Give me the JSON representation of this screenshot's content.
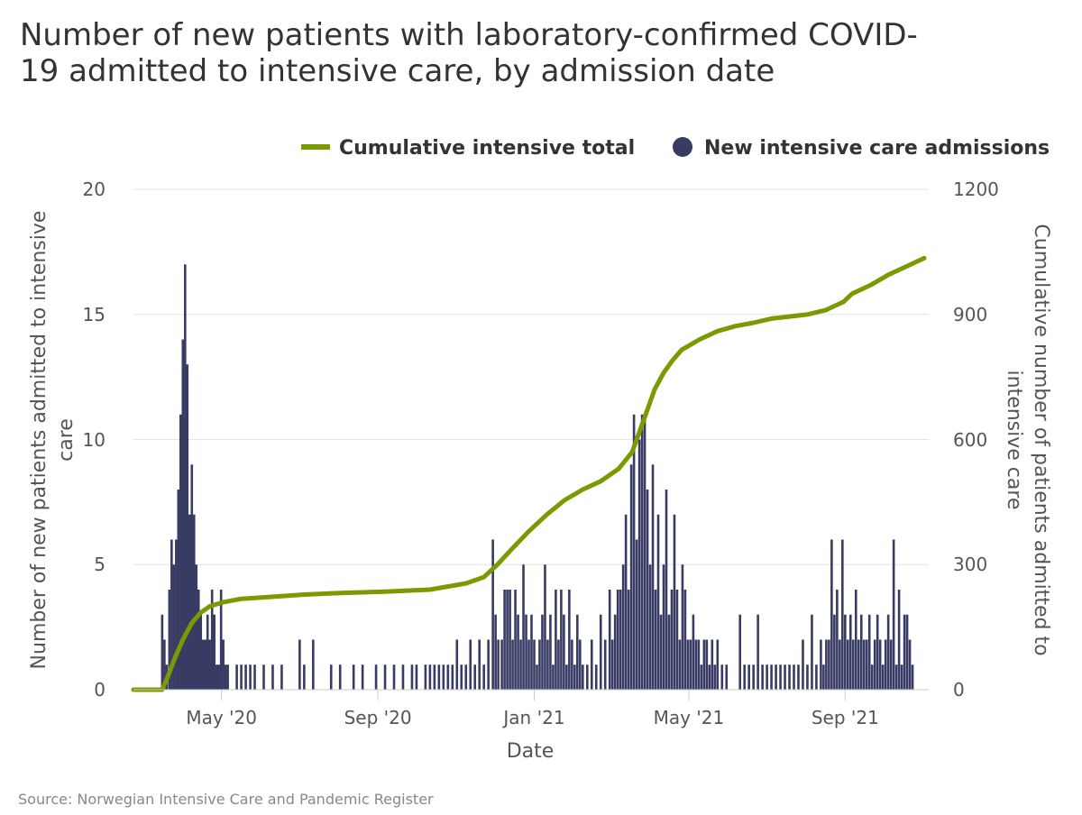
{
  "chart_data": {
    "type": "bar+line",
    "title_lines": [
      "Number of new patients with laboratory-confirmed COVID-",
      "19 admitted to intensive care, by admission date"
    ],
    "legend": [
      {
        "name": "Cumulative intensive total",
        "type": "line",
        "color": "#7a9a01"
      },
      {
        "name": "New intensive care admissions",
        "type": "bar",
        "color": "#383c64"
      }
    ],
    "xlabel": "Date",
    "ylabel_left_lines": [
      "Number of new patients admitted to intensive",
      "care"
    ],
    "ylabel_right_lines": [
      "Cumulative number of patients admitted to",
      "intensive care"
    ],
    "x_ticks": [
      {
        "label": "May '20",
        "week": 6.8
      },
      {
        "label": "Sep '20",
        "week": 24.2
      },
      {
        "label": "Jan '21",
        "week": 41.6
      },
      {
        "label": "May '21",
        "week": 58.8
      },
      {
        "label": "Sep '21",
        "week": 76.2
      }
    ],
    "ylim_left": [
      0,
      20
    ],
    "ylim_right": [
      0,
      1200
    ],
    "y_ticks_left": [
      "0",
      "5",
      "10",
      "15",
      "20"
    ],
    "y_ticks_right": [
      "0",
      "300",
      "600",
      "900",
      "1200"
    ],
    "x_range_weeks": [
      -3,
      85.5
    ],
    "cumulative_points": [
      [
        -3,
        0
      ],
      [
        0.2,
        0
      ],
      [
        0.8,
        30
      ],
      [
        1.5,
        70
      ],
      [
        2.5,
        120
      ],
      [
        3.5,
        160
      ],
      [
        4.5,
        185
      ],
      [
        5.5,
        200
      ],
      [
        7,
        210
      ],
      [
        9,
        218
      ],
      [
        12,
        222
      ],
      [
        16,
        228
      ],
      [
        20,
        232
      ],
      [
        25,
        235
      ],
      [
        30,
        240
      ],
      [
        34,
        255
      ],
      [
        36,
        270
      ],
      [
        37.5,
        300
      ],
      [
        39,
        335
      ],
      [
        41,
        380
      ],
      [
        43,
        420
      ],
      [
        45,
        455
      ],
      [
        47,
        480
      ],
      [
        49,
        500
      ],
      [
        51,
        530
      ],
      [
        52.5,
        570
      ],
      [
        54,
        660
      ],
      [
        55,
        720
      ],
      [
        56,
        760
      ],
      [
        57,
        790
      ],
      [
        58,
        815
      ],
      [
        60,
        840
      ],
      [
        62,
        860
      ],
      [
        64,
        872
      ],
      [
        66,
        880
      ],
      [
        68,
        890
      ],
      [
        70,
        895
      ],
      [
        72,
        900
      ],
      [
        74,
        910
      ],
      [
        76,
        930
      ],
      [
        77,
        950
      ],
      [
        79,
        970
      ],
      [
        81,
        995
      ],
      [
        83,
        1015
      ],
      [
        85,
        1035
      ]
    ],
    "daily_admissions": [
      {
        "x": 0.2,
        "y": 3
      },
      {
        "x": 0.45,
        "y": 2
      },
      {
        "x": 0.7,
        "y": 1
      },
      {
        "x": 1.0,
        "y": 4
      },
      {
        "x": 1.25,
        "y": 6
      },
      {
        "x": 1.5,
        "y": 5
      },
      {
        "x": 1.75,
        "y": 6
      },
      {
        "x": 2.0,
        "y": 8
      },
      {
        "x": 2.25,
        "y": 11
      },
      {
        "x": 2.5,
        "y": 14
      },
      {
        "x": 2.75,
        "y": 17
      },
      {
        "x": 3.0,
        "y": 13
      },
      {
        "x": 3.25,
        "y": 7
      },
      {
        "x": 3.5,
        "y": 9
      },
      {
        "x": 3.75,
        "y": 7
      },
      {
        "x": 4.0,
        "y": 5
      },
      {
        "x": 4.25,
        "y": 4
      },
      {
        "x": 4.5,
        "y": 3
      },
      {
        "x": 4.75,
        "y": 2
      },
      {
        "x": 5.0,
        "y": 2
      },
      {
        "x": 5.25,
        "y": 3
      },
      {
        "x": 5.5,
        "y": 2
      },
      {
        "x": 5.75,
        "y": 4
      },
      {
        "x": 6.0,
        "y": 3
      },
      {
        "x": 6.25,
        "y": 1
      },
      {
        "x": 6.5,
        "y": 1
      },
      {
        "x": 6.75,
        "y": 4
      },
      {
        "x": 7.0,
        "y": 2
      },
      {
        "x": 7.25,
        "y": 1
      },
      {
        "x": 7.5,
        "y": 1
      },
      {
        "x": 8.5,
        "y": 1
      },
      {
        "x": 9.0,
        "y": 1
      },
      {
        "x": 9.5,
        "y": 1
      },
      {
        "x": 10.0,
        "y": 1
      },
      {
        "x": 10.5,
        "y": 1
      },
      {
        "x": 11.5,
        "y": 1
      },
      {
        "x": 12.5,
        "y": 1
      },
      {
        "x": 13.5,
        "y": 1
      },
      {
        "x": 15.5,
        "y": 2
      },
      {
        "x": 16.0,
        "y": 1
      },
      {
        "x": 17.0,
        "y": 2
      },
      {
        "x": 19.0,
        "y": 1
      },
      {
        "x": 20.0,
        "y": 1
      },
      {
        "x": 21.5,
        "y": 1
      },
      {
        "x": 22.5,
        "y": 1
      },
      {
        "x": 24.0,
        "y": 1
      },
      {
        "x": 25.0,
        "y": 1
      },
      {
        "x": 26.0,
        "y": 1
      },
      {
        "x": 27.0,
        "y": 1
      },
      {
        "x": 28.0,
        "y": 1
      },
      {
        "x": 28.5,
        "y": 1
      },
      {
        "x": 29.5,
        "y": 1
      },
      {
        "x": 30.0,
        "y": 1
      },
      {
        "x": 30.5,
        "y": 1
      },
      {
        "x": 31.0,
        "y": 1
      },
      {
        "x": 31.5,
        "y": 1
      },
      {
        "x": 32.0,
        "y": 1
      },
      {
        "x": 32.5,
        "y": 1
      },
      {
        "x": 33.0,
        "y": 2
      },
      {
        "x": 33.5,
        "y": 1
      },
      {
        "x": 34.0,
        "y": 1
      },
      {
        "x": 34.5,
        "y": 2
      },
      {
        "x": 35.0,
        "y": 1
      },
      {
        "x": 35.5,
        "y": 2
      },
      {
        "x": 36.0,
        "y": 1
      },
      {
        "x": 36.5,
        "y": 2
      },
      {
        "x": 37.0,
        "y": 6
      },
      {
        "x": 37.3,
        "y": 3
      },
      {
        "x": 37.6,
        "y": 2
      },
      {
        "x": 38.0,
        "y": 2
      },
      {
        "x": 38.3,
        "y": 4
      },
      {
        "x": 38.6,
        "y": 4
      },
      {
        "x": 38.9,
        "y": 4
      },
      {
        "x": 39.2,
        "y": 2
      },
      {
        "x": 39.5,
        "y": 4
      },
      {
        "x": 39.8,
        "y": 3
      },
      {
        "x": 40.1,
        "y": 2
      },
      {
        "x": 40.4,
        "y": 5
      },
      {
        "x": 40.7,
        "y": 3
      },
      {
        "x": 41.0,
        "y": 2
      },
      {
        "x": 41.3,
        "y": 3
      },
      {
        "x": 41.6,
        "y": 2
      },
      {
        "x": 41.9,
        "y": 1
      },
      {
        "x": 42.2,
        "y": 2
      },
      {
        "x": 42.5,
        "y": 3
      },
      {
        "x": 42.8,
        "y": 5
      },
      {
        "x": 43.1,
        "y": 2
      },
      {
        "x": 43.4,
        "y": 3
      },
      {
        "x": 43.7,
        "y": 1
      },
      {
        "x": 44.0,
        "y": 4
      },
      {
        "x": 44.3,
        "y": 2
      },
      {
        "x": 44.6,
        "y": 4
      },
      {
        "x": 44.9,
        "y": 3
      },
      {
        "x": 45.2,
        "y": 1
      },
      {
        "x": 45.5,
        "y": 4
      },
      {
        "x": 45.8,
        "y": 2
      },
      {
        "x": 46.1,
        "y": 1
      },
      {
        "x": 46.4,
        "y": 3
      },
      {
        "x": 46.7,
        "y": 2
      },
      {
        "x": 47.0,
        "y": 1
      },
      {
        "x": 47.5,
        "y": 1
      },
      {
        "x": 48.0,
        "y": 2
      },
      {
        "x": 48.5,
        "y": 1
      },
      {
        "x": 49.0,
        "y": 3
      },
      {
        "x": 49.5,
        "y": 2
      },
      {
        "x": 50.0,
        "y": 4
      },
      {
        "x": 50.3,
        "y": 2
      },
      {
        "x": 50.6,
        "y": 3
      },
      {
        "x": 50.9,
        "y": 4
      },
      {
        "x": 51.2,
        "y": 4
      },
      {
        "x": 51.5,
        "y": 5
      },
      {
        "x": 51.8,
        "y": 7
      },
      {
        "x": 52.1,
        "y": 4
      },
      {
        "x": 52.4,
        "y": 9
      },
      {
        "x": 52.7,
        "y": 11
      },
      {
        "x": 53.0,
        "y": 6
      },
      {
        "x": 53.3,
        "y": 10
      },
      {
        "x": 53.6,
        "y": 11
      },
      {
        "x": 53.9,
        "y": 11
      },
      {
        "x": 54.2,
        "y": 8
      },
      {
        "x": 54.5,
        "y": 5
      },
      {
        "x": 54.8,
        "y": 9
      },
      {
        "x": 55.1,
        "y": 4
      },
      {
        "x": 55.4,
        "y": 7
      },
      {
        "x": 55.7,
        "y": 3
      },
      {
        "x": 56.0,
        "y": 5
      },
      {
        "x": 56.3,
        "y": 8
      },
      {
        "x": 56.6,
        "y": 3
      },
      {
        "x": 56.9,
        "y": 4
      },
      {
        "x": 57.2,
        "y": 7
      },
      {
        "x": 57.5,
        "y": 4
      },
      {
        "x": 57.8,
        "y": 2
      },
      {
        "x": 58.1,
        "y": 5
      },
      {
        "x": 58.4,
        "y": 4
      },
      {
        "x": 58.7,
        "y": 2
      },
      {
        "x": 59.0,
        "y": 2
      },
      {
        "x": 59.3,
        "y": 3
      },
      {
        "x": 59.6,
        "y": 2
      },
      {
        "x": 59.9,
        "y": 2
      },
      {
        "x": 60.2,
        "y": 1
      },
      {
        "x": 60.5,
        "y": 2
      },
      {
        "x": 60.8,
        "y": 2
      },
      {
        "x": 61.1,
        "y": 1
      },
      {
        "x": 61.4,
        "y": 2
      },
      {
        "x": 61.7,
        "y": 1
      },
      {
        "x": 62.0,
        "y": 2
      },
      {
        "x": 62.5,
        "y": 1
      },
      {
        "x": 63.0,
        "y": 1
      },
      {
        "x": 64.5,
        "y": 3
      },
      {
        "x": 65.0,
        "y": 1
      },
      {
        "x": 65.5,
        "y": 1
      },
      {
        "x": 66.0,
        "y": 1
      },
      {
        "x": 66.5,
        "y": 3
      },
      {
        "x": 67.0,
        "y": 1
      },
      {
        "x": 67.5,
        "y": 1
      },
      {
        "x": 68.0,
        "y": 1
      },
      {
        "x": 68.5,
        "y": 1
      },
      {
        "x": 69.0,
        "y": 1
      },
      {
        "x": 69.5,
        "y": 1
      },
      {
        "x": 70.0,
        "y": 1
      },
      {
        "x": 70.5,
        "y": 1
      },
      {
        "x": 71.0,
        "y": 1
      },
      {
        "x": 71.5,
        "y": 2
      },
      {
        "x": 72.0,
        "y": 1
      },
      {
        "x": 72.5,
        "y": 3
      },
      {
        "x": 73.0,
        "y": 1
      },
      {
        "x": 73.5,
        "y": 2
      },
      {
        "x": 73.8,
        "y": 1
      },
      {
        "x": 74.1,
        "y": 2
      },
      {
        "x": 74.4,
        "y": 2
      },
      {
        "x": 74.7,
        "y": 6
      },
      {
        "x": 75.0,
        "y": 3
      },
      {
        "x": 75.3,
        "y": 4
      },
      {
        "x": 75.6,
        "y": 2
      },
      {
        "x": 75.9,
        "y": 6
      },
      {
        "x": 76.2,
        "y": 3
      },
      {
        "x": 76.5,
        "y": 2
      },
      {
        "x": 76.8,
        "y": 3
      },
      {
        "x": 77.1,
        "y": 2
      },
      {
        "x": 77.4,
        "y": 4
      },
      {
        "x": 77.7,
        "y": 2
      },
      {
        "x": 78.0,
        "y": 3
      },
      {
        "x": 78.3,
        "y": 2
      },
      {
        "x": 78.6,
        "y": 2
      },
      {
        "x": 78.9,
        "y": 3
      },
      {
        "x": 79.2,
        "y": 1
      },
      {
        "x": 79.5,
        "y": 2
      },
      {
        "x": 79.8,
        "y": 3
      },
      {
        "x": 80.1,
        "y": 2
      },
      {
        "x": 80.4,
        "y": 1
      },
      {
        "x": 80.7,
        "y": 2
      },
      {
        "x": 81.0,
        "y": 3
      },
      {
        "x": 81.3,
        "y": 2
      },
      {
        "x": 81.6,
        "y": 6
      },
      {
        "x": 81.9,
        "y": 1
      },
      {
        "x": 82.2,
        "y": 4
      },
      {
        "x": 82.5,
        "y": 1
      },
      {
        "x": 82.8,
        "y": 3
      },
      {
        "x": 83.1,
        "y": 3
      },
      {
        "x": 83.4,
        "y": 2
      },
      {
        "x": 83.7,
        "y": 1
      }
    ]
  },
  "source_text": "Source: Norwegian Intensive Care and Pandemic Register",
  "colors": {
    "bar": "#383c64",
    "line": "#7a9a01",
    "grid": "#e4e4e4",
    "axis": "#cccccc"
  }
}
